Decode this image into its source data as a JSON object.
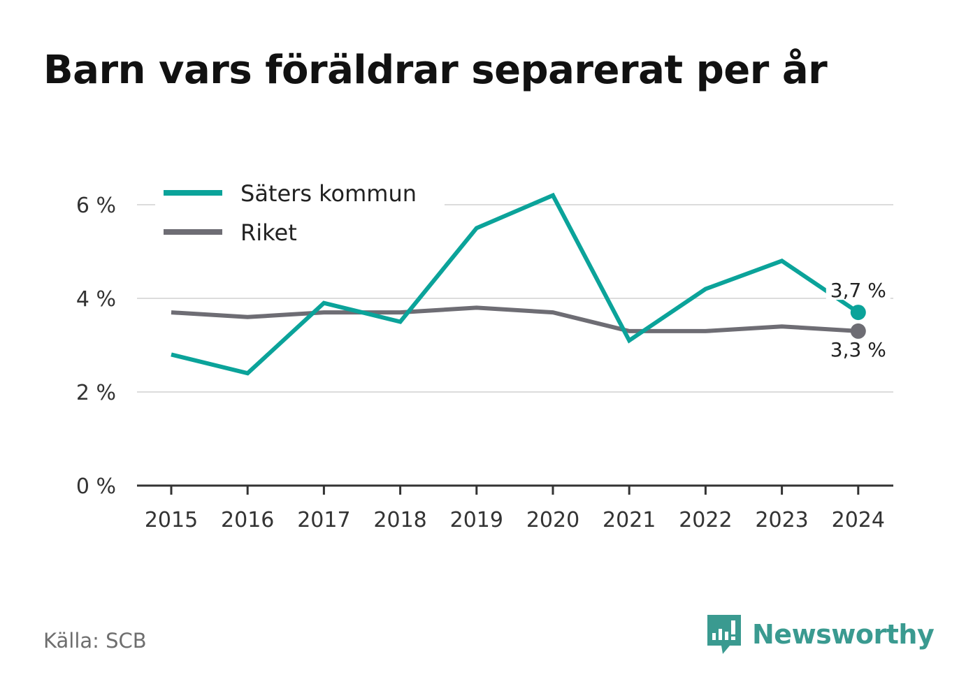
{
  "title": "Barn vars föräldrar separerat per år",
  "source": "Källa: SCB",
  "brand": {
    "name": "Newsworthy",
    "icon": "newsworthy-logo-icon",
    "color": "#3a9a90"
  },
  "chart_data": {
    "type": "line",
    "x": [
      "2015",
      "2016",
      "2017",
      "2018",
      "2019",
      "2020",
      "2021",
      "2022",
      "2023",
      "2024"
    ],
    "series": [
      {
        "name": "Säters kommun",
        "color": "#0ba39a",
        "values": [
          2.8,
          2.4,
          3.9,
          3.5,
          5.5,
          6.2,
          3.1,
          4.2,
          4.8,
          3.7
        ]
      },
      {
        "name": "Riket",
        "color": "#6e6d74",
        "values": [
          3.7,
          3.6,
          3.7,
          3.7,
          3.8,
          3.7,
          3.3,
          3.3,
          3.4,
          3.3
        ]
      }
    ],
    "y_ticks": [
      0,
      2,
      4,
      6
    ],
    "y_tick_labels": [
      "0 %",
      "2 %",
      "4 %",
      "6 %"
    ],
    "ylim": [
      0,
      6.7
    ],
    "end_labels": [
      "3,7 %",
      "3,3 %"
    ],
    "legend": "top-left",
    "grid": true
  }
}
